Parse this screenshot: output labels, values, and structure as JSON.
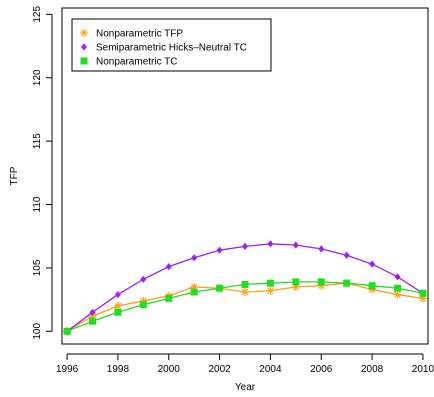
{
  "chart_data": {
    "type": "line",
    "title": "",
    "xlabel": "Year",
    "ylabel": "TFP",
    "xlim": [
      1995.8,
      2010.2
    ],
    "ylim": [
      99,
      125.5
    ],
    "x_ticks": [
      1996,
      1998,
      2000,
      2002,
      2004,
      2006,
      2008,
      2010
    ],
    "y_ticks": [
      100,
      105,
      110,
      115,
      120,
      125
    ],
    "grid": false,
    "legend_position": "top-left",
    "x": [
      1996,
      1997,
      1998,
      1999,
      2000,
      2001,
      2002,
      2003,
      2004,
      2005,
      2006,
      2007,
      2008,
      2009,
      2010
    ],
    "series": [
      {
        "name": "Nonparametric TFP",
        "color": "#ff9f1a",
        "marker": "asterisk",
        "values": [
          100.0,
          101.2,
          102.0,
          102.4,
          102.8,
          103.5,
          103.4,
          103.1,
          103.2,
          103.5,
          103.6,
          103.8,
          103.3,
          102.9,
          102.6
        ]
      },
      {
        "name": "Semiparametric Hicks–Neutral TC",
        "color": "#a020f0",
        "marker": "diamond",
        "values": [
          100.0,
          101.5,
          102.9,
          104.1,
          105.1,
          105.8,
          106.4,
          106.7,
          106.9,
          106.8,
          106.5,
          106.0,
          105.3,
          104.3,
          103.0
        ]
      },
      {
        "name": "Nonparametric TC",
        "color": "#22dd22",
        "marker": "square",
        "values": [
          100.0,
          100.8,
          101.5,
          102.1,
          102.6,
          103.1,
          103.4,
          103.7,
          103.8,
          103.9,
          103.9,
          103.8,
          103.6,
          103.4,
          103.0
        ]
      }
    ]
  }
}
